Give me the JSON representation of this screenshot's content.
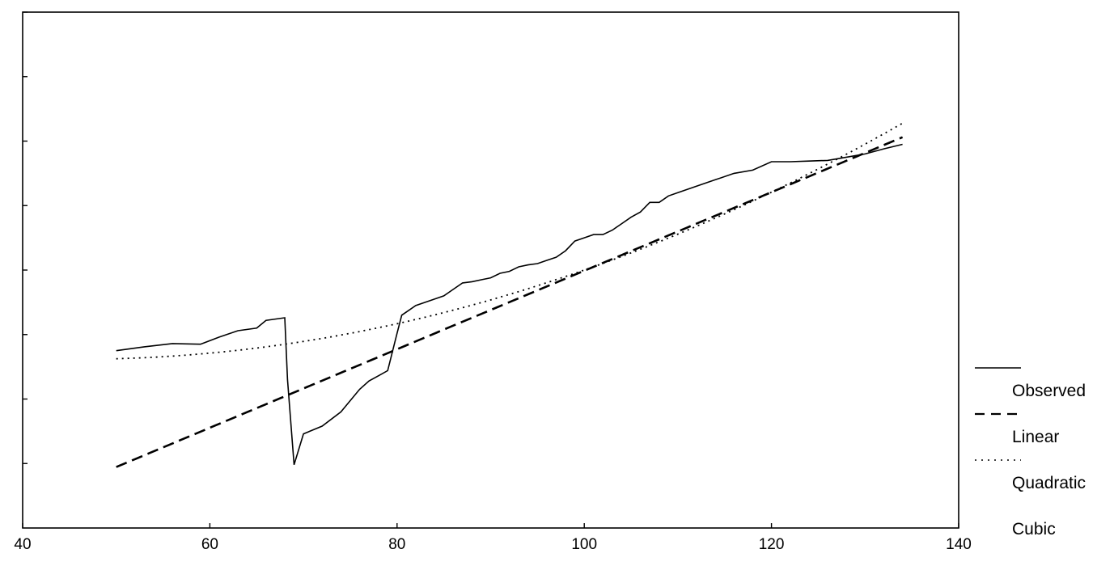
{
  "chart_data": {
    "type": "line",
    "title": "",
    "xlabel": "",
    "ylabel": "",
    "xlim": [
      40,
      140
    ],
    "ylim": [
      0,
      8
    ],
    "x_ticks": [
      40,
      60,
      80,
      100,
      120,
      140
    ],
    "y_tick_values": [
      1,
      2,
      3,
      4,
      5,
      6,
      7,
      8
    ],
    "grid": false,
    "legend": {
      "placement": "right",
      "entries": [
        "Observed",
        "Linear",
        "Quadratic",
        "Cubic"
      ]
    },
    "series": [
      {
        "name": "Observed",
        "style": "solid",
        "x": [
          50,
          53,
          56,
          59,
          61,
          63,
          65,
          66,
          68,
          68.3,
          69,
          70,
          72,
          74,
          76,
          77,
          78,
          79,
          80,
          80.5,
          82,
          83,
          84,
          85,
          86,
          87,
          88,
          89,
          90,
          91,
          92,
          93,
          94,
          95,
          96,
          97,
          98,
          99,
          100,
          101,
          102,
          103,
          104,
          105,
          106,
          107,
          108,
          109,
          110,
          112,
          114,
          116,
          118,
          120,
          122,
          124,
          126,
          128,
          130,
          132,
          134
        ],
        "y": [
          2.75,
          2.81,
          2.86,
          2.85,
          2.96,
          3.06,
          3.1,
          3.22,
          3.26,
          2.3,
          0.98,
          1.46,
          1.58,
          1.8,
          2.15,
          2.28,
          2.36,
          2.44,
          3.02,
          3.3,
          3.45,
          3.5,
          3.55,
          3.6,
          3.7,
          3.8,
          3.82,
          3.85,
          3.88,
          3.95,
          3.98,
          4.05,
          4.08,
          4.1,
          4.15,
          4.2,
          4.3,
          4.45,
          4.5,
          4.55,
          4.55,
          4.62,
          4.72,
          4.82,
          4.9,
          5.05,
          5.05,
          5.15,
          5.2,
          5.3,
          5.4,
          5.5,
          5.55,
          5.68,
          5.68,
          5.69,
          5.7,
          5.75,
          5.8,
          5.88,
          5.95
        ]
      },
      {
        "name": "Linear",
        "style": "dashed",
        "coefficients": [
          -2.1,
          0.0609
        ]
      },
      {
        "name": "Quadratic",
        "style": "dotted",
        "coefficients": [
          3.6,
          -0.043,
          0.00047
        ]
      },
      {
        "name": "Cubic",
        "style": "none",
        "coefficients": []
      }
    ],
    "x_range": [
      50,
      134
    ]
  }
}
